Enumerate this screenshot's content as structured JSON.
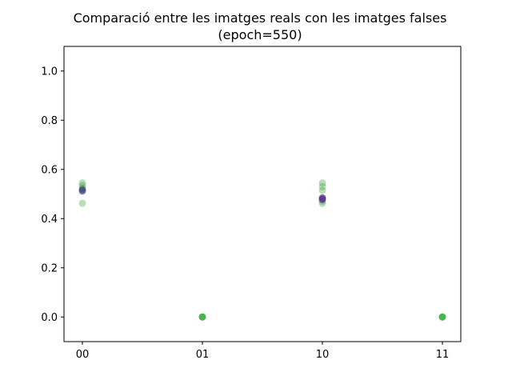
{
  "chart_data": {
    "type": "scatter",
    "title_line1": "Comparació entre les imatges reals con les imatges falses",
    "title_line2": "(epoch=550)",
    "xlabel": "",
    "ylabel": "",
    "categories": [
      "00",
      "01",
      "10",
      "11"
    ],
    "ylim": [
      -0.1,
      1.1
    ],
    "yticks": [
      0.0,
      0.2,
      0.4,
      0.6,
      0.8,
      1.0
    ],
    "ytick_labels": [
      "0.0",
      "0.2",
      "0.4",
      "0.6",
      "0.8",
      "1.0"
    ],
    "grid": false,
    "series": [
      {
        "color": "#3a9e3a",
        "opacity": 0.35,
        "points": [
          {
            "x": "00",
            "y": 0.545
          },
          {
            "x": "00",
            "y": 0.535
          },
          {
            "x": "00",
            "y": 0.525
          },
          {
            "x": "00",
            "y": 0.462
          },
          {
            "x": "01",
            "y": 0.0
          },
          {
            "x": "10",
            "y": 0.545
          },
          {
            "x": "10",
            "y": 0.53
          },
          {
            "x": "10",
            "y": 0.515
          },
          {
            "x": "10",
            "y": 0.47
          },
          {
            "x": "10",
            "y": 0.462
          },
          {
            "x": "11",
            "y": 0.0
          }
        ]
      },
      {
        "color": "#3b3f7a",
        "opacity": 0.65,
        "points": [
          {
            "x": "00",
            "y": 0.518
          },
          {
            "x": "00",
            "y": 0.512
          }
        ]
      },
      {
        "color": "#5a2d8a",
        "opacity": 0.75,
        "points": [
          {
            "x": "10",
            "y": 0.484
          },
          {
            "x": "10",
            "y": 0.478
          }
        ]
      },
      {
        "color": "#3cb043",
        "opacity": 0.9,
        "points": [
          {
            "x": "01",
            "y": 0.0
          },
          {
            "x": "11",
            "y": 0.0
          }
        ]
      }
    ]
  }
}
